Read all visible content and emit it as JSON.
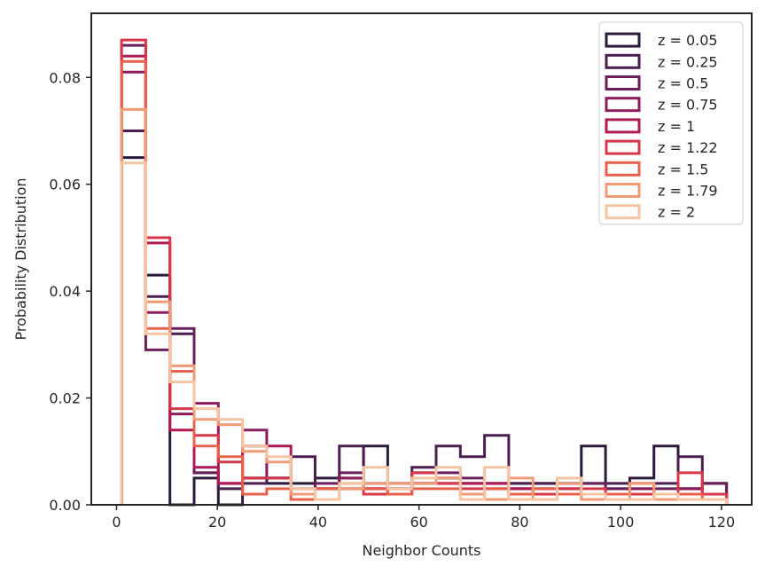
{
  "chart_data": {
    "type": "histogram-step",
    "xlabel": "Neighbor Counts",
    "ylabel": "Probability Distribution",
    "xlim": [
      -5,
      126
    ],
    "ylim": [
      0,
      0.092
    ],
    "xticks": [
      0,
      20,
      40,
      60,
      80,
      100,
      120
    ],
    "yticks": [
      0.0,
      0.02,
      0.04,
      0.06,
      0.08
    ],
    "xtick_labels": [
      "0",
      "20",
      "40",
      "60",
      "80",
      "100",
      "120"
    ],
    "ytick_labels": [
      "0.00",
      "0.02",
      "0.04",
      "0.06",
      "0.08"
    ],
    "legend_position": "top-right",
    "bin_edges": [
      1,
      5.8,
      10.6,
      15.4,
      20.2,
      25,
      29.8,
      34.6,
      39.4,
      44.2,
      49,
      53.8,
      58.6,
      63.4,
      68.2,
      73,
      77.8,
      82.6,
      87.4,
      92.2,
      97,
      101.8,
      106.6,
      111.4,
      116.2,
      121
    ],
    "series": [
      {
        "name": "z = 0.05",
        "label": "z = 0.05",
        "color": "#2a1a3c",
        "values": [
          0.065,
          0.043,
          0.0,
          0.005,
          0.0,
          0.005,
          0.004,
          0.004,
          0.005,
          0.005,
          0.011,
          0.002,
          0.004,
          0.005,
          0.004,
          0.004,
          0.004,
          0.004,
          0.004,
          0.011,
          0.003,
          0.005,
          0.011,
          0.003,
          0.004
        ]
      },
      {
        "name": "z = 0.25",
        "label": "z = 0.25",
        "color": "#4a1f4f",
        "values": [
          0.07,
          0.039,
          0.032,
          0.006,
          0.003,
          0.004,
          0.005,
          0.009,
          0.003,
          0.011,
          0.003,
          0.003,
          0.007,
          0.011,
          0.009,
          0.013,
          0.004,
          0.004,
          0.004,
          0.004,
          0.004,
          0.004,
          0.004,
          0.009,
          0.004
        ]
      },
      {
        "name": "z = 0.5",
        "label": "z = 0.5",
        "color": "#6a1f5a",
        "values": [
          0.086,
          0.029,
          0.033,
          0.006,
          0.004,
          0.005,
          0.005,
          0.002,
          0.004,
          0.006,
          0.004,
          0.004,
          0.006,
          0.006,
          0.005,
          0.003,
          0.003,
          0.003,
          0.002,
          0.004,
          0.003,
          0.003,
          0.003,
          0.003,
          0.004
        ]
      },
      {
        "name": "z = 0.75",
        "label": "z = 0.75",
        "color": "#8c1c5e",
        "values": [
          0.081,
          0.036,
          0.017,
          0.019,
          0.004,
          0.014,
          0.005,
          0.003,
          0.003,
          0.005,
          0.003,
          0.004,
          0.004,
          0.004,
          0.004,
          0.004,
          0.003,
          0.002,
          0.003,
          0.002,
          0.002,
          0.003,
          0.002,
          0.003,
          0.002
        ]
      },
      {
        "name": "z = 1",
        "label": "z = 1",
        "color": "#b01a54",
        "values": [
          0.084,
          0.049,
          0.014,
          0.007,
          0.004,
          0.011,
          0.011,
          0.002,
          0.003,
          0.003,
          0.003,
          0.003,
          0.004,
          0.004,
          0.004,
          0.004,
          0.003,
          0.003,
          0.003,
          0.002,
          0.002,
          0.002,
          0.002,
          0.002,
          0.002
        ]
      },
      {
        "name": "z = 1.22",
        "label": "z = 1.22",
        "color": "#d5384a",
        "values": [
          0.087,
          0.05,
          0.018,
          0.013,
          0.008,
          0.005,
          0.005,
          0.003,
          0.003,
          0.003,
          0.002,
          0.003,
          0.006,
          0.004,
          0.003,
          0.003,
          0.002,
          0.002,
          0.003,
          0.003,
          0.002,
          0.002,
          0.002,
          0.006,
          0.002
        ]
      },
      {
        "name": "z = 1.5",
        "label": "z = 1.5",
        "color": "#e8614a",
        "values": [
          0.083,
          0.033,
          0.025,
          0.011,
          0.009,
          0.002,
          0.003,
          0.001,
          0.003,
          0.004,
          0.003,
          0.002,
          0.003,
          0.003,
          0.002,
          0.003,
          0.002,
          0.003,
          0.002,
          0.002,
          0.002,
          0.004,
          0.001,
          0.002,
          0.001
        ]
      },
      {
        "name": "z = 1.79",
        "label": "z = 1.79",
        "color": "#f09a76",
        "values": [
          0.074,
          0.038,
          0.026,
          0.016,
          0.015,
          0.01,
          0.008,
          0.002,
          0.001,
          0.003,
          0.004,
          0.004,
          0.004,
          0.005,
          0.002,
          0.001,
          0.005,
          0.001,
          0.004,
          0.001,
          0.001,
          0.004,
          0.001,
          0.001,
          0.001
        ]
      },
      {
        "name": "z = 2",
        "label": "z = 2",
        "color": "#f5c5a3",
        "values": [
          0.064,
          0.032,
          0.023,
          0.018,
          0.016,
          0.011,
          0.009,
          0.003,
          0.001,
          0.004,
          0.007,
          0.003,
          0.005,
          0.007,
          0.001,
          0.007,
          0.001,
          0.001,
          0.005,
          0.002,
          0.001,
          0.001,
          0.002,
          0.001,
          0.001
        ]
      }
    ]
  }
}
